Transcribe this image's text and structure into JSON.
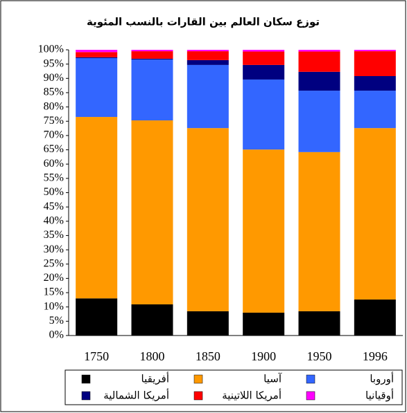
{
  "chart_data": {
    "type": "stacked_bar_100",
    "title": "توزع سكان العالم بين القارات بالنسب المئوية",
    "categories": [
      "1750",
      "1800",
      "1850",
      "1900",
      "1950",
      "1996"
    ],
    "series": [
      {
        "name": "أفريقيا",
        "color": "#000000",
        "values": [
          13,
          10.9,
          8.5,
          8,
          8.5,
          12.6
        ]
      },
      {
        "name": "آسيا",
        "color": "#ff9900",
        "values": [
          63.5,
          64.4,
          64.1,
          57.1,
          55.7,
          60
        ]
      },
      {
        "name": "أوروبا",
        "color": "#3366ff",
        "values": [
          20.6,
          21.3,
          22.1,
          24.5,
          21.5,
          13.1
        ]
      },
      {
        "name": "أمريكا الشمالية",
        "color": "#000080",
        "values": [
          0.3,
          0.3,
          1.7,
          5.1,
          6.6,
          5.1
        ]
      },
      {
        "name": "أمريكا اللاتينية",
        "color": "#ff0000",
        "values": [
          1.8,
          2.6,
          3.1,
          4.7,
          7.1,
          8.7
        ]
      },
      {
        "name": "أوقيانيا",
        "color": "#ff00ff",
        "values": [
          0.8,
          0.5,
          0.5,
          0.6,
          0.6,
          0.5
        ]
      }
    ],
    "ylim": [
      0,
      100
    ],
    "yticks": [
      {
        "value": 0,
        "label": "0%"
      },
      {
        "value": 5,
        "label": "5%"
      },
      {
        "value": 10,
        "label": "10%"
      },
      {
        "value": 15,
        "label": "15%"
      },
      {
        "value": 20,
        "label": "20%"
      },
      {
        "value": 25,
        "label": "25%"
      },
      {
        "value": 30,
        "label": "30%"
      },
      {
        "value": 35,
        "label": "35%"
      },
      {
        "value": 40,
        "label": "40%"
      },
      {
        "value": 45,
        "label": "45%"
      },
      {
        "value": 50,
        "label": "50%"
      },
      {
        "value": 55,
        "label": "55%"
      },
      {
        "value": 60,
        "label": "60%"
      },
      {
        "value": 65,
        "label": "65%"
      },
      {
        "value": 70,
        "label": "70%"
      },
      {
        "value": 75,
        "label": "75%"
      },
      {
        "value": 80,
        "label": "80%"
      },
      {
        "value": 85,
        "label": "85%"
      },
      {
        "value": 90,
        "label": "90%"
      },
      {
        "value": 95,
        "label": "95%"
      },
      {
        "value": 100,
        "label": "100%"
      }
    ],
    "legend": "bottom",
    "grid": false
  }
}
